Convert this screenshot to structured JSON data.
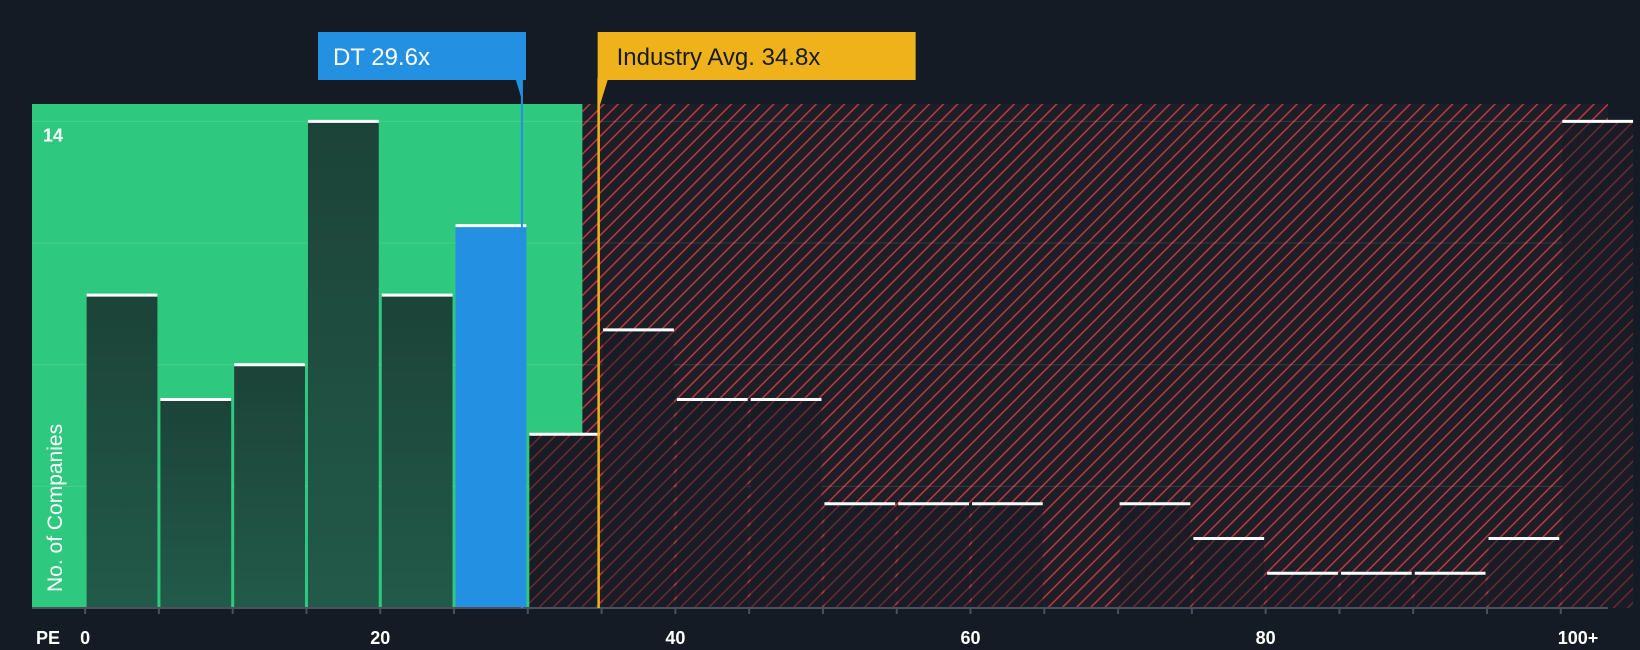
{
  "chart_data": {
    "type": "bar",
    "title": "",
    "xlabel": "PE",
    "ylabel": "No. of Companies",
    "x_tick_labels": [
      "0",
      "20",
      "40",
      "60",
      "80",
      "100+"
    ],
    "x_ticks": [
      0,
      20,
      40,
      60,
      80,
      100
    ],
    "xlim": [
      -3.6,
      103.2
    ],
    "ylim": [
      0,
      14.5
    ],
    "y_tick_labels": [
      "14"
    ],
    "bin_width": 5,
    "bins": [
      {
        "x": 0,
        "count": 9
      },
      {
        "x": 5,
        "count": 6
      },
      {
        "x": 10,
        "count": 7
      },
      {
        "x": 15,
        "count": 14
      },
      {
        "x": 20,
        "count": 9
      },
      {
        "x": 25,
        "count": 11,
        "highlight": true
      },
      {
        "x": 30,
        "count": 5
      },
      {
        "x": 35,
        "count": 8
      },
      {
        "x": 40,
        "count": 6
      },
      {
        "x": 45,
        "count": 6
      },
      {
        "x": 50,
        "count": 3
      },
      {
        "x": 55,
        "count": 3
      },
      {
        "x": 60,
        "count": 3
      },
      {
        "x": 65,
        "count": 0
      },
      {
        "x": 70,
        "count": 3
      },
      {
        "x": 75,
        "count": 2
      },
      {
        "x": 80,
        "count": 1
      },
      {
        "x": 85,
        "count": 1
      },
      {
        "x": 90,
        "count": 1
      },
      {
        "x": 95,
        "count": 2
      },
      {
        "x": 100,
        "count": 14,
        "overflow": true
      }
    ],
    "company": {
      "label": "DT 29.6x",
      "value": 29.6
    },
    "industry": {
      "label": "Industry Avg. 34.8x",
      "value": 34.8
    },
    "fair_zone_end": 33.7,
    "colors": {
      "background": "#151b24",
      "fair_zone": "#2ec97e",
      "bar_fair": "#1e4b3f",
      "bar_highlight": "#2390e2",
      "bar_expensive": "#1c1f28",
      "hatch": "#c0373c",
      "company_callout": "#2390e2",
      "industry_callout": "#efb21b"
    }
  }
}
